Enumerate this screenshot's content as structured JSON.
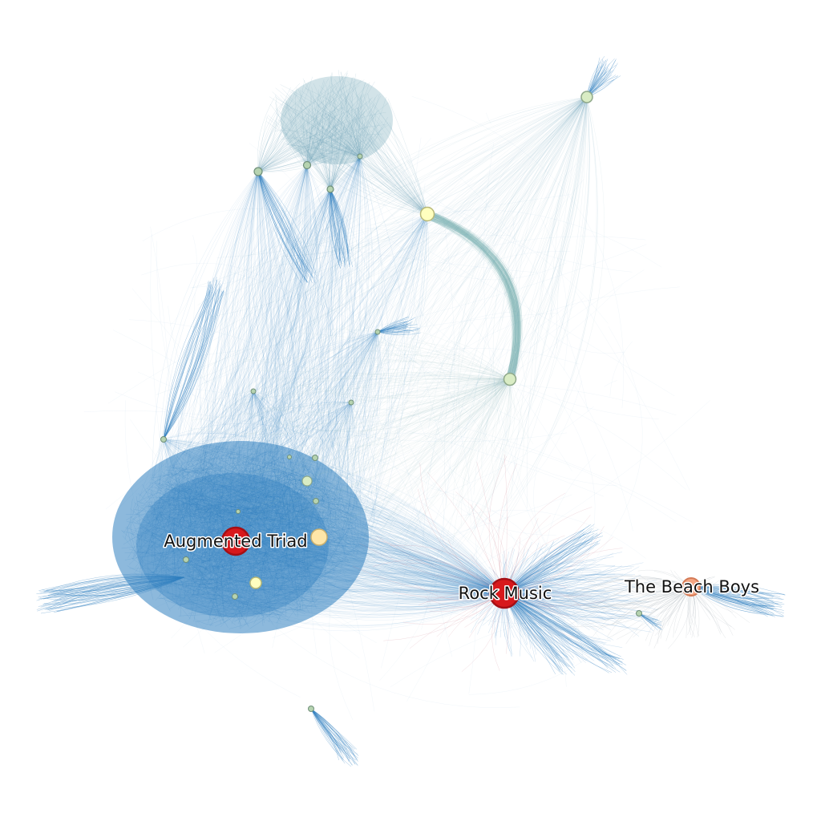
{
  "graph": {
    "labels": {
      "augmented_triad": "Augmented Triad",
      "rock_music": "Rock Music",
      "beach_boys": "The Beach Boys"
    },
    "colors": {
      "edge_primary": "#2f7fbf",
      "edge_secondary": "#6fa5b8",
      "edge_tertiary": "#8fbcbc",
      "edge_accent": "#c46a7a",
      "edge_grey": "#9aa3ad",
      "hub_fill": "#d7191c",
      "hub_stroke": "#a50f15",
      "peach_fill": "#f4a582",
      "peach_stroke": "#d47a55",
      "light_fill": "#ffffbf",
      "light_stroke": "#b8b878",
      "pale_fill": "#d9ecc4",
      "pale_stroke": "#8fa88a",
      "small_fill": "#b6d3b0",
      "small_stroke": "#6f8f7a"
    }
  }
}
